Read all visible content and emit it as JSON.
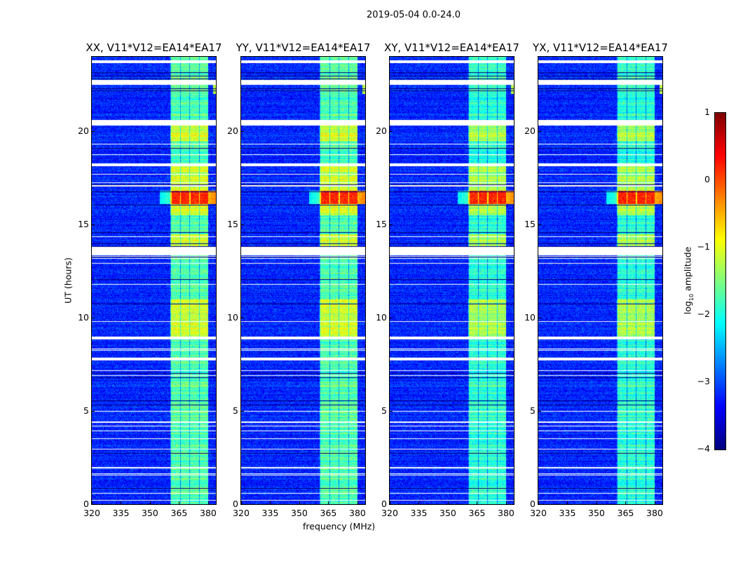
{
  "chart_data": {
    "type": "heatmap",
    "title": "2019-05-04 0.0-24.0",
    "panels": [
      {
        "title": "XX, V11*V12=EA14*EA17",
        "pol": "XX"
      },
      {
        "title": "YY, V11*V12=EA14*EA17",
        "pol": "YY"
      },
      {
        "title": "XY, V11*V12=EA14*EA17",
        "pol": "XY"
      },
      {
        "title": "YX, V11*V12=EA14*EA17",
        "pol": "YX"
      }
    ],
    "xlabel": "frequency (MHz)",
    "ylabel": "UT (hours)",
    "xlim": [
      320,
      384
    ],
    "ylim": [
      0,
      24
    ],
    "xticks": [
      "320",
      "335",
      "350",
      "365",
      "380"
    ],
    "xtick_values": [
      320,
      335,
      350,
      365,
      380
    ],
    "yticks": [
      "0",
      "5",
      "10",
      "15",
      "20"
    ],
    "ytick_values": [
      0,
      5,
      10,
      15,
      20
    ],
    "colorbar": {
      "label_main": "log",
      "label_sub": "10",
      "label_rest": " amplitude",
      "colormap": "jet",
      "range": [
        -4,
        1
      ],
      "ticks": [
        "1",
        "0",
        "−1",
        "−2",
        "−3",
        "−4"
      ],
      "tick_values": [
        1,
        0,
        -1,
        -2,
        -3,
        -4
      ]
    },
    "background_level": -3.2,
    "band": {
      "freq_range": [
        360.5,
        380
      ],
      "level": -1.7
    },
    "bright_periods_hours": [
      [
        9,
        11
      ],
      [
        15.5,
        18.3
      ],
      [
        19.5,
        20.5
      ],
      [
        13.5,
        14.5
      ]
    ],
    "rfi_event": {
      "hour_range": [
        16.1,
        16.8
      ],
      "freq_range": [
        355,
        380
      ],
      "level": 0.2
    },
    "flagged_hours": [
      [
        23.65,
        23.8
      ],
      [
        22.5,
        22.75
      ],
      [
        20.3,
        20.6
      ],
      [
        18.15,
        18.3
      ],
      [
        13.35,
        13.8
      ],
      [
        8.85,
        9.0
      ],
      [
        7.7,
        7.85
      ],
      [
        4.35,
        4.45
      ],
      [
        1.9,
        2.0
      ]
    ]
  }
}
